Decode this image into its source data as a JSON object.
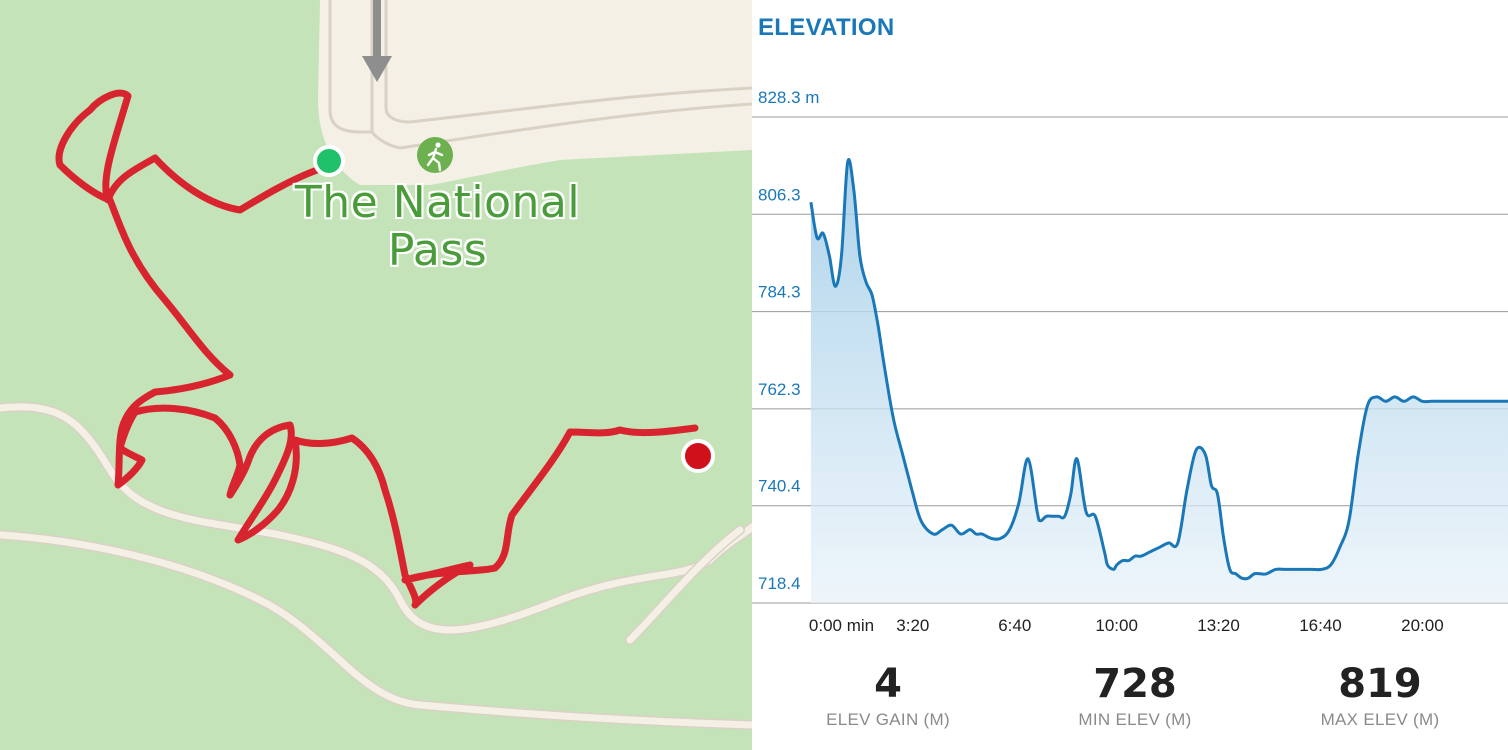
{
  "map": {
    "place_label_line1": "The National",
    "place_label_line2": "Pass",
    "colors": {
      "park": "#c5e3b8",
      "route": "#d7242f",
      "road": "#f4f0e6",
      "start": "#1fc16b",
      "end": "#d0111b",
      "trail_poi": "#6db04f"
    },
    "icons": {
      "start": "start-marker-icon",
      "end": "end-marker-icon",
      "poi": "hiking-trail-icon",
      "direction": "direction-arrow-icon"
    }
  },
  "elevation": {
    "title": "ELEVATION",
    "accent": "#1a78b8",
    "stats": [
      {
        "value": "4",
        "label": "ELEV GAIN (M)"
      },
      {
        "value": "728",
        "label": "MIN ELEV (M)"
      },
      {
        "value": "819",
        "label": "MAX ELEV (M)"
      }
    ]
  },
  "chart_data": {
    "type": "area",
    "title": "ELEVATION",
    "ylim": [
      718.4,
      828.3
    ],
    "y_ticks": [
      {
        "v": 828.3,
        "label": "828.3 m"
      },
      {
        "v": 806.3,
        "label": "806.3"
      },
      {
        "v": 784.3,
        "label": "784.3"
      },
      {
        "v": 762.3,
        "label": "762.3"
      },
      {
        "v": 740.4,
        "label": "740.4"
      },
      {
        "v": 718.4,
        "label": "718.4"
      }
    ],
    "x_ticks": [
      {
        "m": 0,
        "label": "0:00 min"
      },
      {
        "m": 3.333,
        "label": "3:20"
      },
      {
        "m": 6.667,
        "label": "6:40"
      },
      {
        "m": 10,
        "label": "10:00"
      },
      {
        "m": 13.333,
        "label": "13:20"
      },
      {
        "m": 16.667,
        "label": "16:40"
      },
      {
        "m": 20,
        "label": "20:00"
      }
    ],
    "xlim": [
      -0.03,
      22.8
    ],
    "grid": true,
    "series": [
      {
        "x": [
          0,
          0.2,
          0.4,
          0.6,
          0.8,
          1.0,
          1.2,
          1.4,
          1.6,
          1.8,
          2.0,
          2.2,
          2.4,
          2.7,
          3.0,
          3.3,
          3.6,
          4.0,
          4.3,
          4.6,
          4.9,
          5.2,
          5.4,
          5.6,
          5.9,
          6.2,
          6.5,
          6.8,
          7.1,
          7.4,
          7.5,
          7.7,
          7.9,
          8.1,
          8.3,
          8.5,
          8.7,
          9.0,
          9.3,
          9.6,
          9.7,
          9.9,
          10.0,
          10.2,
          10.4,
          10.6,
          10.8,
          11.1,
          11.4,
          11.7,
          12.0,
          12.3,
          12.6,
          12.9,
          13.1,
          13.3,
          13.5,
          13.7,
          13.9,
          14.1,
          14.3,
          14.5,
          14.7,
          14.9,
          15.2,
          15.5,
          15.8,
          16.1,
          16.4,
          16.7,
          17.0,
          17.3,
          17.6,
          17.9,
          18.2,
          18.5,
          18.8,
          19.1,
          19.4,
          19.7,
          20.0,
          20.3,
          20.6,
          20.8,
          21.0,
          21.2,
          21.4,
          21.6,
          21.8,
          22.0,
          22.2,
          22.4,
          22.6,
          22.8
        ],
        "y": [
          809,
          801,
          802,
          797,
          790,
          797,
          818,
          812,
          797,
          791,
          788,
          781,
          772,
          760,
          752,
          744,
          737,
          734,
          735,
          736,
          734,
          735,
          734,
          734,
          733,
          733,
          735,
          741,
          751,
          739,
          737,
          738,
          738,
          738,
          738,
          743,
          751,
          739,
          738,
          730,
          727,
          726,
          727,
          728,
          728,
          729,
          729,
          730,
          731,
          732,
          732,
          744,
          753,
          752,
          745,
          743,
          733,
          726,
          725,
          724,
          724,
          725,
          725,
          725,
          726,
          726,
          726,
          726,
          726,
          726,
          727,
          731,
          737,
          752,
          763,
          765,
          764,
          765,
          764,
          765,
          764,
          764,
          764,
          764,
          764,
          764,
          764,
          764,
          764,
          764,
          764,
          764,
          764,
          764
        ]
      }
    ]
  }
}
